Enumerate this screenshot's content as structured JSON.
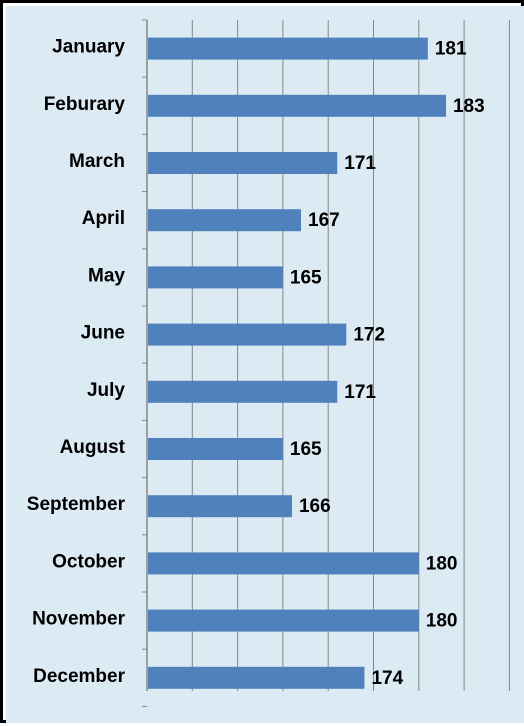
{
  "colors": {
    "bar": "#4f81bd",
    "plot_background": "#dcebf3",
    "gridline": "#868686",
    "frame": "#000000"
  },
  "chart_data": {
    "type": "bar",
    "orientation": "horizontal",
    "categories": [
      "January",
      "Feburary",
      "March",
      "April",
      "May",
      "June",
      "July",
      "August",
      "September",
      "October",
      "November",
      "December"
    ],
    "values": [
      181,
      183,
      171,
      167,
      165,
      172,
      171,
      165,
      166,
      180,
      180,
      174
    ],
    "data_labels": [
      "181",
      "183",
      "171",
      "167",
      "165",
      "172",
      "171",
      "165",
      "166",
      "180",
      "180",
      "174"
    ],
    "title": "",
    "xlabel": "",
    "ylabel": "",
    "xlim": [
      150,
      190
    ],
    "grid": true,
    "legend": "none"
  }
}
